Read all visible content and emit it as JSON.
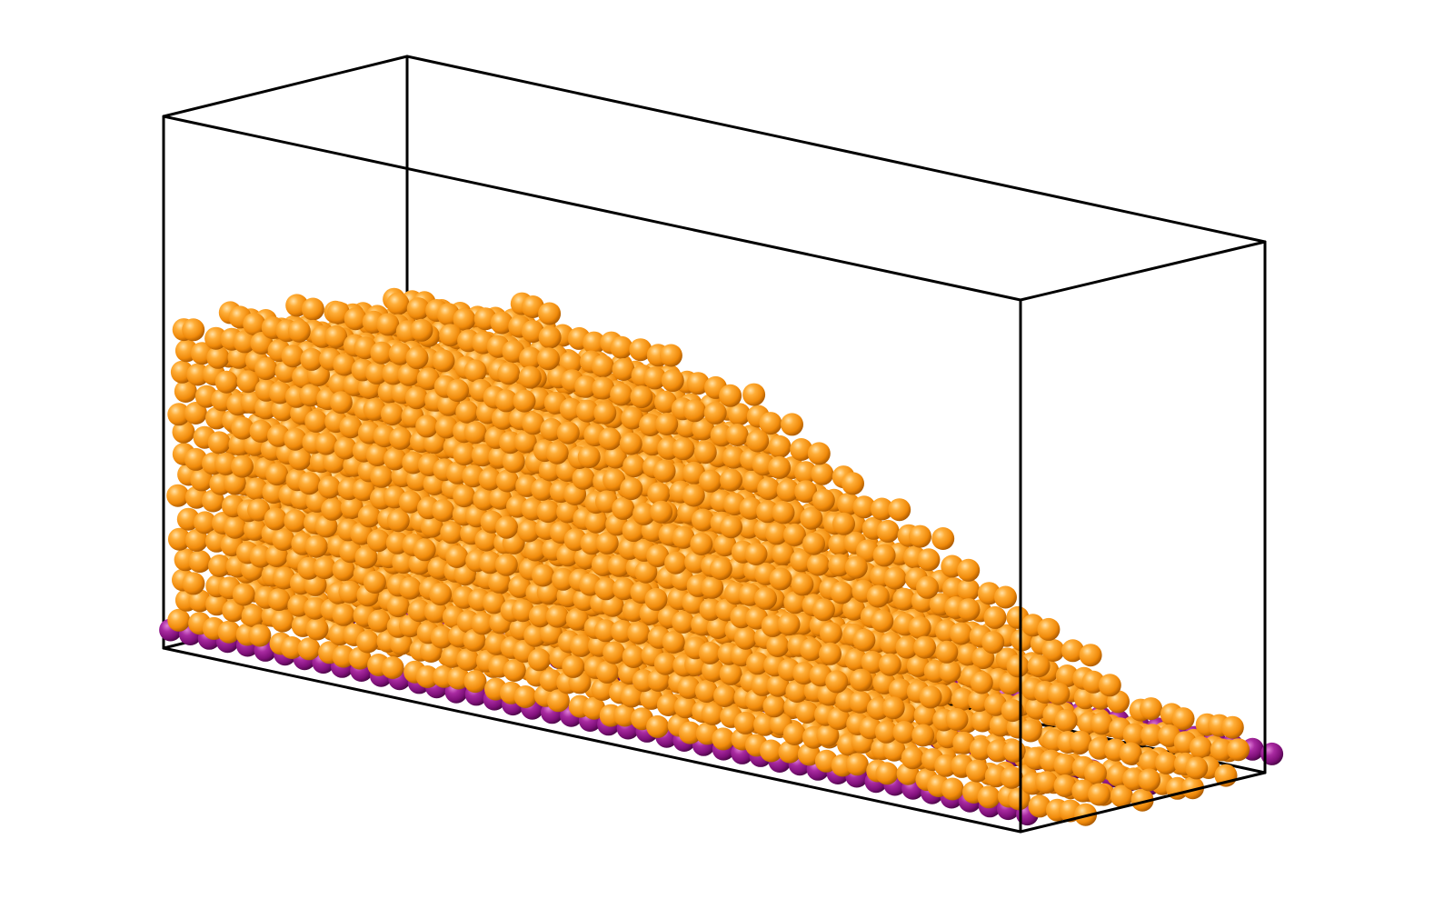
{
  "scene": {
    "type": "granular-particle-simulation",
    "container": "rectangular-box-wireframe",
    "edge_color": "#000000",
    "background": "#ffffff",
    "species": [
      {
        "role": "granular-particles",
        "color": "#f7941d"
      },
      {
        "role": "substrate-particles",
        "color": "#8e1a8e"
      }
    ]
  }
}
